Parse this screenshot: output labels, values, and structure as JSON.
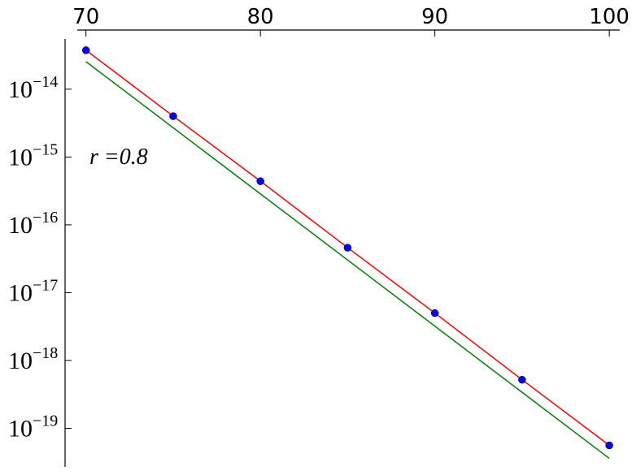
{
  "chart_data": {
    "type": "line",
    "annotation": "r =0.8",
    "x": [
      70,
      75,
      80,
      85,
      90,
      95,
      100
    ],
    "series": [
      {
        "color": "#ff0000",
        "style": "line",
        "values": [
          3.75e-14,
          4e-15,
          4.4e-16,
          4.6e-17,
          5e-18,
          5.2e-19,
          5.6e-20
        ]
      },
      {
        "color": "#008000",
        "style": "line",
        "values": [
          2.55e-14,
          null,
          null,
          null,
          null,
          null,
          3.6e-20
        ]
      },
      {
        "color": "#0000ff",
        "style": "markers",
        "values": [
          3.75e-14,
          4e-15,
          4.4e-16,
          4.6e-17,
          5e-18,
          5.2e-19,
          5.6e-20
        ]
      }
    ],
    "xlim": [
      69.5,
      100.6
    ],
    "xticks": [
      70,
      80,
      90,
      100
    ],
    "xaxis_position": "top",
    "ylim": [
      2.7e-20,
      5.5e-14
    ],
    "ylog": true,
    "yticks": [
      {
        "value": 1e-14,
        "label": "10−14"
      },
      {
        "value": 1e-15,
        "label": "10−15"
      },
      {
        "value": 1e-16,
        "label": "10−16"
      },
      {
        "value": 1e-17,
        "label": "10−17"
      },
      {
        "value": 1e-18,
        "label": "10−18"
      },
      {
        "value": 1e-19,
        "label": "10−19"
      }
    ],
    "grid": false
  }
}
